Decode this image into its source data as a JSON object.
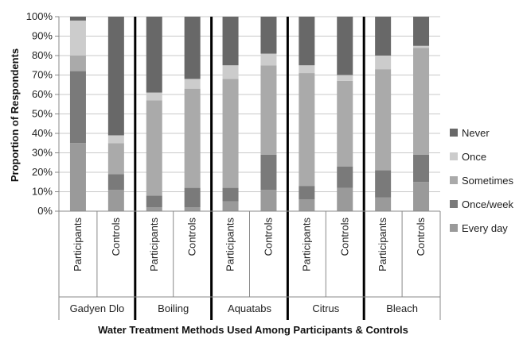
{
  "chart_data": {
    "type": "bar",
    "stacked": true,
    "percent": true,
    "xlabel": "Water Treatment Methods Used Among Participants & Controls",
    "ylabel": "Proportion of Respondents",
    "ylim": [
      0,
      100
    ],
    "yticks": [
      "0%",
      "10%",
      "20%",
      "30%",
      "40%",
      "50%",
      "60%",
      "70%",
      "80%",
      "90%",
      "100%"
    ],
    "groups": [
      "Gadyen Dlo",
      "Boiling",
      "Aquatabs",
      "Citrus",
      "Bleach"
    ],
    "categories": [
      "Participants",
      "Controls",
      "Participants",
      "Controls",
      "Participants",
      "Controls",
      "Participants",
      "Controls",
      "Participants",
      "Controls"
    ],
    "legend_position": "right",
    "series": [
      {
        "name": "Every day",
        "color": "#9a9a9a",
        "values": [
          35,
          11,
          2,
          2,
          5,
          11,
          6,
          12,
          7,
          15
        ]
      },
      {
        "name": "Once/week",
        "color": "#7a7a7a",
        "values": [
          37,
          8,
          6,
          10,
          7,
          18,
          7,
          11,
          14,
          14
        ]
      },
      {
        "name": "Sometimes",
        "color": "#aaaaaa",
        "values": [
          8,
          16,
          49,
          51,
          56,
          46,
          58,
          44,
          52,
          55
        ]
      },
      {
        "name": "Once",
        "color": "#cccccc",
        "values": [
          18,
          4,
          4,
          5,
          7,
          6,
          4,
          3,
          7,
          1
        ]
      },
      {
        "name": "Never",
        "color": "#686868",
        "values": [
          2,
          61,
          39,
          32,
          25,
          19,
          25,
          30,
          20,
          15
        ]
      }
    ]
  }
}
